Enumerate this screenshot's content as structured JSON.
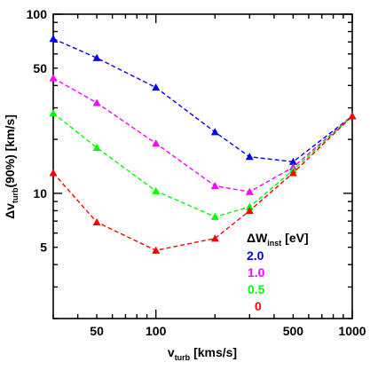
{
  "chart_data": {
    "type": "line",
    "xlabel": {
      "main": "v",
      "sub": "turb",
      "rest": " [kms/s]"
    },
    "ylabel": {
      "main": "Δv",
      "sub": "turb",
      "rest": "(90%) [km/s]"
    },
    "xscale": "log",
    "yscale": "log",
    "xlim": [
      30,
      1000
    ],
    "ylim": [
      2,
      100
    ],
    "xticks": [
      50,
      100,
      500,
      1000
    ],
    "yticks": [
      5,
      10,
      50,
      100
    ],
    "xtick_labels": [
      "50",
      "100",
      "500",
      "1000"
    ],
    "ytick_labels": [
      "5",
      "10",
      "50",
      "100"
    ],
    "grid": false,
    "legend": {
      "title_main": "ΔW",
      "title_sub": "inst",
      "title_rest": " [eV]",
      "placement": "lower-right"
    },
    "series": [
      {
        "name": "2.0",
        "color": "#0000ff",
        "x": [
          30,
          50,
          100,
          200,
          300,
          500,
          1000
        ],
        "y": [
          73,
          57,
          39,
          22,
          16,
          15,
          27
        ]
      },
      {
        "name": "1.0",
        "color": "#ff00ff",
        "x": [
          30,
          50,
          100,
          200,
          300,
          500,
          1000
        ],
        "y": [
          44,
          32,
          19,
          11,
          10.2,
          14,
          27
        ]
      },
      {
        "name": "0.5",
        "color": "#00ff00",
        "x": [
          30,
          50,
          100,
          200,
          300,
          500,
          1000
        ],
        "y": [
          28,
          18,
          10.3,
          7.4,
          8.4,
          13.5,
          27
        ]
      },
      {
        "name": "0",
        "color": "#ff0000",
        "x": [
          30,
          50,
          100,
          200,
          300,
          500,
          1000
        ],
        "y": [
          13,
          6.9,
          4.8,
          5.6,
          8,
          13,
          27
        ]
      }
    ]
  }
}
